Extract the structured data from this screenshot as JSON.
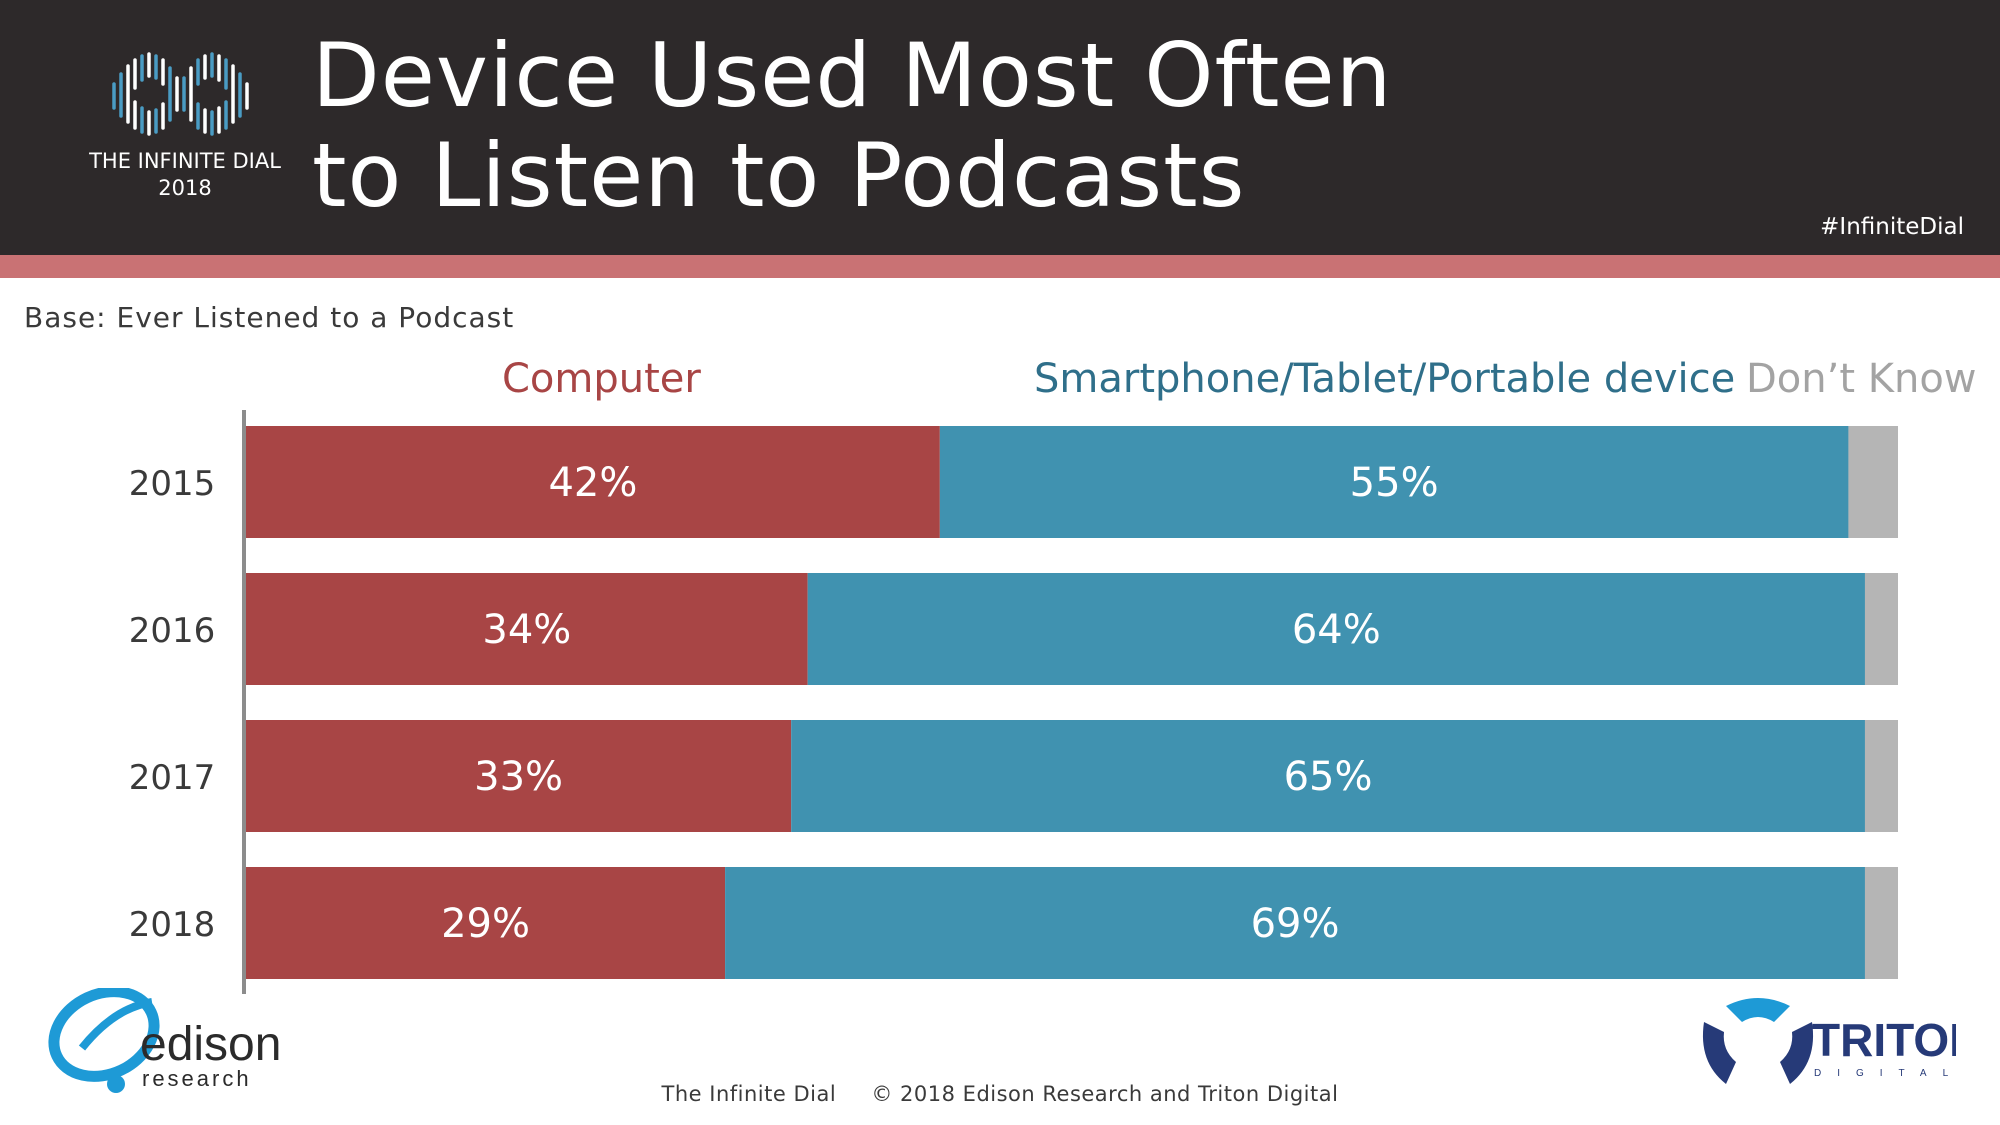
{
  "header": {
    "title_line1": "Device Used Most Often",
    "title_line2": "to Listen to Podcasts",
    "logo_caption_line1": "THE INFINITE DIAL",
    "logo_caption_line2": "2018",
    "hashtag": "#InfiniteDial"
  },
  "base_note": "Base: Ever Listened to a Podcast",
  "legend": {
    "computer": "Computer",
    "smartphone": "Smartphone/Tablet/Portable device",
    "dont_know": "Don’t Know"
  },
  "colors": {
    "computer": "#a84545",
    "smartphone": "#4092b0",
    "dont_know": "#b5b5b5",
    "header_bg": "#2d292a",
    "accent": "#c97274"
  },
  "chart_data": {
    "type": "bar",
    "orientation": "horizontal",
    "stacked": true,
    "title": "Device Used Most Often to Listen to Podcasts",
    "categories": [
      "2015",
      "2016",
      "2017",
      "2018"
    ],
    "series": [
      {
        "name": "Computer",
        "values": [
          42,
          34,
          33,
          29
        ],
        "labels": [
          "42%",
          "34%",
          "33%",
          "29%"
        ]
      },
      {
        "name": "Smartphone/Tablet/Portable device",
        "values": [
          55,
          64,
          65,
          69
        ],
        "labels": [
          "55%",
          "64%",
          "65%",
          "69%"
        ]
      },
      {
        "name": "Don’t Know",
        "values": [
          3,
          2,
          2,
          2
        ],
        "labels": [
          "",
          "",
          "",
          ""
        ]
      }
    ],
    "xlim": [
      0,
      100
    ],
    "xlabel": "",
    "ylabel": "",
    "grid": false,
    "legend_position": "top"
  },
  "footer": {
    "left": "The Infinite Dial",
    "right": "© 2018 Edison Research and Triton Digital"
  },
  "edison_logo": {
    "name": "edison",
    "sub": "research"
  },
  "triton_logo": {
    "name": "TRITON",
    "sub": "DIGITAL"
  }
}
